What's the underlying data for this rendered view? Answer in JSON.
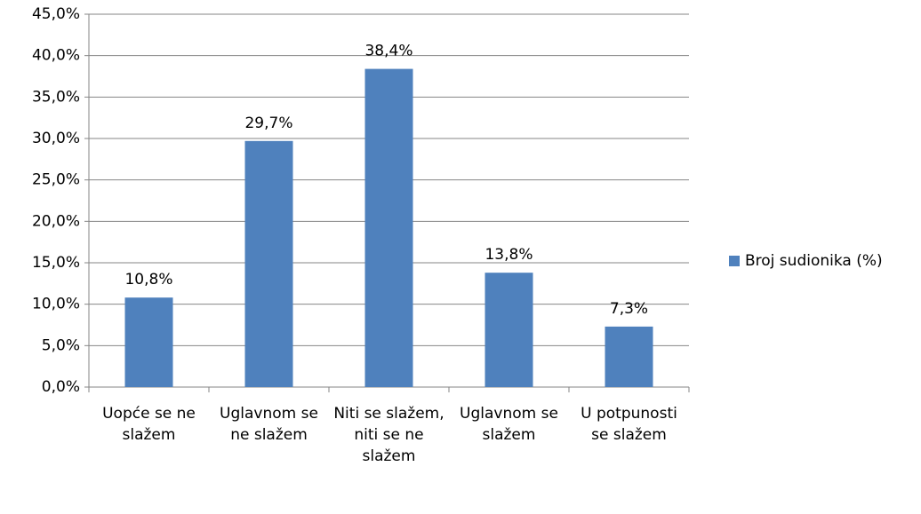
{
  "chart_data": {
    "type": "bar",
    "categories": [
      "Uopće se ne slažem",
      "Uglavnom se ne slažem",
      "Niti se slažem, niti se ne slažem",
      "Uglavnom se slažem",
      "U potpunosti se slažem"
    ],
    "series": [
      {
        "name": "Broj sudionika (%)",
        "color": "#4f81bd",
        "values": [
          10.8,
          29.7,
          38.4,
          13.8,
          7.3
        ],
        "value_labels": [
          "10,8%",
          "29,7%",
          "38,4%",
          "13,8%",
          "7,3%"
        ]
      }
    ],
    "ylim": [
      0,
      45
    ],
    "yticks": [
      {
        "value": 0,
        "label": "0,0%"
      },
      {
        "value": 5,
        "label": "5,0%"
      },
      {
        "value": 10,
        "label": "10,0%"
      },
      {
        "value": 15,
        "label": "15,0%"
      },
      {
        "value": 20,
        "label": "20,0%"
      },
      {
        "value": 25,
        "label": "25,0%"
      },
      {
        "value": 30,
        "label": "30,0%"
      },
      {
        "value": 35,
        "label": "35,0%"
      },
      {
        "value": 40,
        "label": "40,0%"
      },
      {
        "value": 45,
        "label": "45,0%"
      }
    ],
    "grid": true,
    "legend": "right"
  }
}
